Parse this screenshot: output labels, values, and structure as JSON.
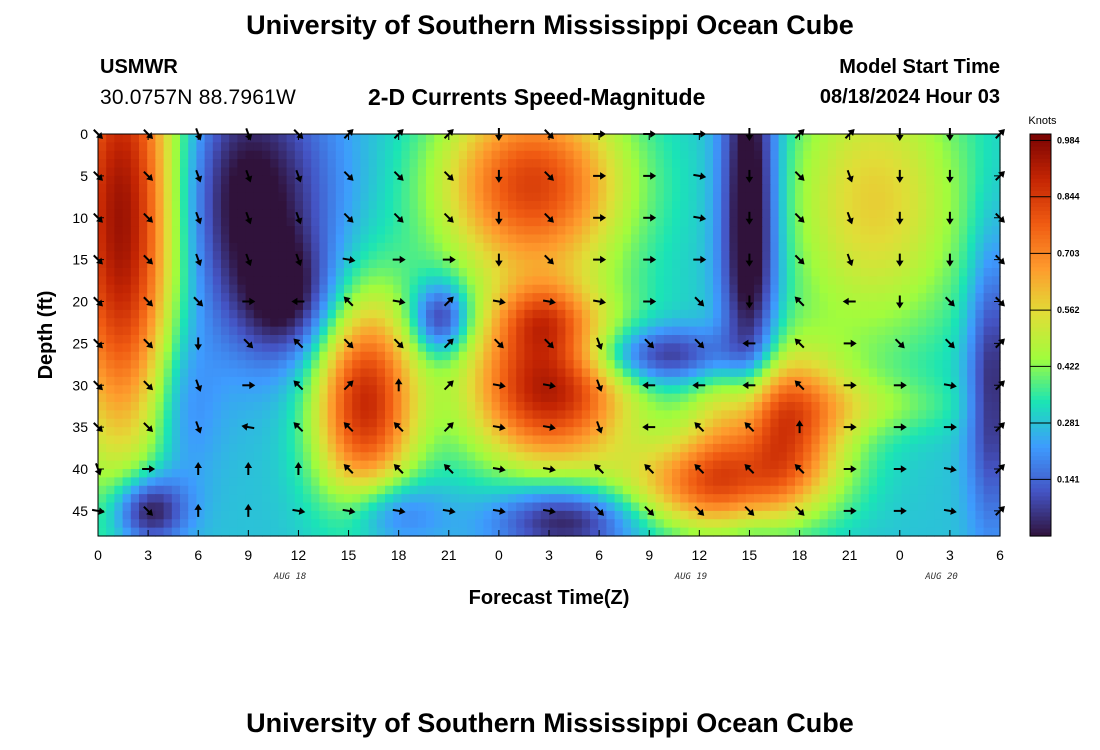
{
  "header": {
    "title": "University of Southern Mississippi Ocean Cube",
    "station": "USMWR",
    "coordinates": "30.0757N  88.7961W",
    "subtitle": "2-D Currents Speed-Magnitude",
    "model_start_label": "Model Start Time",
    "model_start_value": "08/18/2024 Hour 03"
  },
  "footer": {
    "title": "University of Southern Mississippi Ocean Cube"
  },
  "colors": {
    "low": "#30123b",
    "blue": "#3e9bfe",
    "cyan": "#1ae4b6",
    "green": "#a2fc3c",
    "yellow": "#e1dd37",
    "orange": "#f05b12",
    "red": "#c42503",
    "high": "#7a0403",
    "arrow": "#000000"
  },
  "chart_data": {
    "type": "heatmap",
    "xlabel": "Forecast Time(Z)",
    "ylabel": "Depth (ft)",
    "x_ticks": [
      "0",
      "3",
      "6",
      "9",
      "12",
      "15",
      "18",
      "21",
      "0",
      "3",
      "6",
      "9",
      "12",
      "15",
      "18",
      "21",
      "0",
      "3",
      "6"
    ],
    "x_range_hours": [
      0,
      54
    ],
    "date_labels": [
      {
        "label": "AUG 18",
        "hour": 11.5
      },
      {
        "label": "AUG 19",
        "hour": 35.5
      },
      {
        "label": "AUG 20",
        "hour": 50.5
      }
    ],
    "y_ticks": [
      0,
      5,
      10,
      15,
      20,
      25,
      30,
      35,
      40,
      45
    ],
    "y_range_ft": [
      0,
      48
    ],
    "colorbar": {
      "unit": "Knots",
      "ticks": [
        "0.984",
        "0.844",
        "0.703",
        "0.562",
        "0.422",
        "0.281",
        "0.141"
      ],
      "tick_values": [
        0.984,
        0.844,
        0.703,
        0.562,
        0.422,
        0.281,
        0.141
      ],
      "range": [
        0.0,
        1.0
      ]
    },
    "arrow_times": [
      0,
      3,
      6,
      9,
      12,
      15,
      18,
      21,
      24,
      27,
      30,
      33,
      36,
      39,
      42,
      45,
      48,
      51,
      54
    ],
    "arrow_depths": [
      0,
      5,
      10,
      15,
      20,
      25,
      30,
      35,
      40,
      45
    ],
    "arrow_directions_deg": [
      [
        135,
        135,
        160,
        160,
        135,
        45,
        45,
        45,
        180,
        135,
        90,
        90,
        90,
        180,
        45,
        45,
        180,
        180,
        45
      ],
      [
        135,
        135,
        160,
        160,
        160,
        135,
        135,
        135,
        180,
        135,
        90,
        90,
        100,
        180,
        135,
        160,
        180,
        180,
        45
      ],
      [
        135,
        135,
        160,
        160,
        160,
        135,
        135,
        135,
        180,
        135,
        90,
        90,
        100,
        180,
        135,
        160,
        180,
        180,
        135
      ],
      [
        135,
        135,
        160,
        160,
        160,
        100,
        90,
        90,
        180,
        135,
        90,
        90,
        90,
        180,
        135,
        160,
        180,
        180,
        135
      ],
      [
        135,
        135,
        135,
        90,
        270,
        315,
        100,
        45,
        100,
        100,
        100,
        90,
        135,
        180,
        315,
        270,
        180,
        135,
        135
      ],
      [
        135,
        135,
        180,
        135,
        315,
        135,
        135,
        45,
        135,
        135,
        160,
        135,
        135,
        270,
        315,
        90,
        135,
        135,
        45
      ],
      [
        135,
        135,
        160,
        90,
        315,
        45,
        0,
        45,
        100,
        100,
        160,
        270,
        270,
        270,
        315,
        90,
        90,
        100,
        45
      ],
      [
        135,
        135,
        160,
        280,
        315,
        315,
        315,
        45,
        100,
        100,
        160,
        270,
        315,
        315,
        0,
        90,
        90,
        90,
        45
      ],
      [
        160,
        90,
        0,
        0,
        0,
        315,
        315,
        315,
        100,
        100,
        315,
        315,
        315,
        315,
        315,
        90,
        90,
        100,
        45
      ],
      [
        100,
        135,
        0,
        0,
        100,
        100,
        100,
        100,
        100,
        100,
        135,
        135,
        135,
        135,
        135,
        90,
        90,
        100,
        45
      ]
    ],
    "speed_hotspots": [
      {
        "h": 1.5,
        "d": 10,
        "sh": 2.5,
        "sd": 20,
        "v": 0.7
      },
      {
        "h": 9,
        "d": 8,
        "sh": 3.5,
        "sd": 11,
        "v": -0.32
      },
      {
        "h": 11.5,
        "d": 20,
        "sh": 2,
        "sd": 5,
        "v": -0.22
      },
      {
        "h": 16,
        "d": 32,
        "sh": 2.2,
        "sd": 9,
        "v": 0.6
      },
      {
        "h": 26,
        "d": 6,
        "sh": 4,
        "sd": 8,
        "v": 0.55
      },
      {
        "h": 27,
        "d": 30,
        "sh": 3.5,
        "sd": 7,
        "v": 0.65
      },
      {
        "h": 26.5,
        "d": 22,
        "sh": 1.8,
        "sd": 3,
        "v": 0.2
      },
      {
        "h": 20.5,
        "d": 22,
        "sh": 1.2,
        "sd": 3,
        "v": -0.3
      },
      {
        "h": 39,
        "d": 10,
        "sh": 1.2,
        "sd": 18,
        "v": -0.4
      },
      {
        "h": 33.5,
        "d": 26.5,
        "sh": 3.5,
        "sd": 2.5,
        "v": -0.3
      },
      {
        "h": 46.5,
        "d": 8,
        "sh": 4,
        "sd": 12,
        "v": 0.3
      },
      {
        "h": 46.5,
        "d": 32.5,
        "sh": 3.5,
        "sd": 2.5,
        "v": 0.1
      },
      {
        "h": 40.5,
        "d": 34,
        "sh": 3,
        "sd": 6,
        "v": 0.55
      },
      {
        "h": 37,
        "d": 42,
        "sh": 4,
        "sd": 4,
        "v": 0.45
      },
      {
        "h": 28,
        "d": 46,
        "sh": 3,
        "sd": 3,
        "v": -0.3
      },
      {
        "h": 3,
        "d": 45,
        "sh": 1.5,
        "sd": 3,
        "v": -0.35
      },
      {
        "h": 17.5,
        "d": 45,
        "sh": 2,
        "sd": 3,
        "v": -0.2
      },
      {
        "h": 5,
        "d": 32,
        "sh": 1.5,
        "sd": 8,
        "v": -0.15
      },
      {
        "h": 53.5,
        "d": 30,
        "sh": 1,
        "sd": 12,
        "v": -0.25
      }
    ],
    "base_speed": 0.28
  }
}
